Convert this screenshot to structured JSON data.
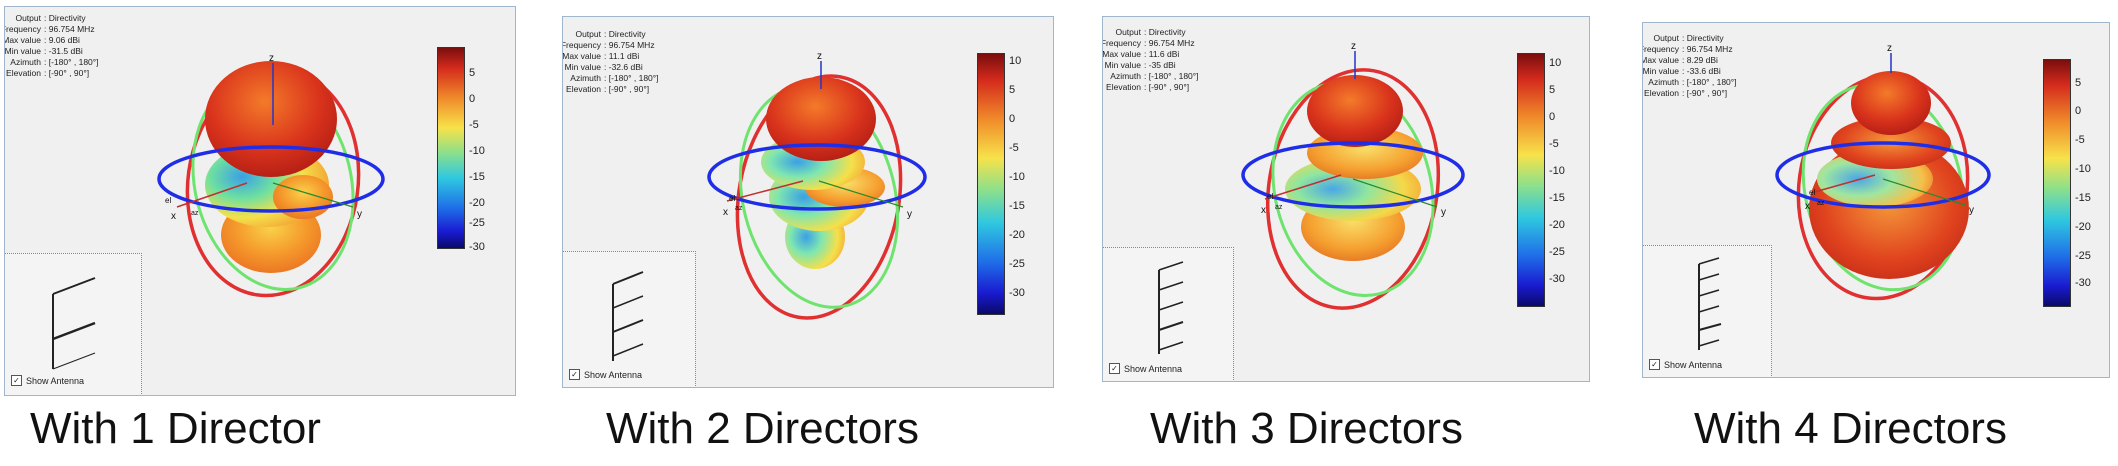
{
  "panels": [
    {
      "info": [
        {
          "key": "Output",
          "value": "Directivity"
        },
        {
          "key": "Frequency",
          "value": "96.754 MHz"
        },
        {
          "key": "Max value",
          "value": "9.06 dBi"
        },
        {
          "key": "Min value",
          "value": "-31.5 dBi"
        },
        {
          "key": "Azimuth",
          "value": "[-180° , 180°]"
        },
        {
          "key": "Elevation",
          "value": "[-90° , 90°]"
        }
      ],
      "colorbar_ticks": [
        "5",
        "0",
        "-5",
        "-10",
        "-15",
        "-20",
        "-25",
        "-30"
      ],
      "axis_labels": {
        "z": "z",
        "x": "x",
        "y": "y",
        "az": "az",
        "el": "el"
      },
      "show_antenna": "Show Antenna",
      "director_count": 1,
      "caption": "With 1 Director"
    },
    {
      "info": [
        {
          "key": "Output",
          "value": "Directivity"
        },
        {
          "key": "Frequency",
          "value": "96.754 MHz"
        },
        {
          "key": "Max value",
          "value": "11.1 dBi"
        },
        {
          "key": "Min value",
          "value": "-32.6 dBi"
        },
        {
          "key": "Azimuth",
          "value": "[-180° , 180°]"
        },
        {
          "key": "Elevation",
          "value": "[-90° , 90°]"
        }
      ],
      "colorbar_ticks": [
        "10",
        "5",
        "0",
        "-5",
        "-10",
        "-15",
        "-20",
        "-25",
        "-30"
      ],
      "axis_labels": {
        "z": "z",
        "x": "x",
        "y": "y",
        "az": "az",
        "el": "el"
      },
      "show_antenna": "Show Antenna",
      "director_count": 2,
      "caption": "With 2 Directors"
    },
    {
      "info": [
        {
          "key": "Output",
          "value": "Directivity"
        },
        {
          "key": "Frequency",
          "value": "96.754 MHz"
        },
        {
          "key": "Max value",
          "value": "11.6 dBi"
        },
        {
          "key": "Min value",
          "value": "-35 dBi"
        },
        {
          "key": "Azimuth",
          "value": "[-180° , 180°]"
        },
        {
          "key": "Elevation",
          "value": "[-90° , 90°]"
        }
      ],
      "colorbar_ticks": [
        "10",
        "5",
        "0",
        "-5",
        "-10",
        "-15",
        "-20",
        "-25",
        "-30"
      ],
      "axis_labels": {
        "z": "z",
        "x": "x",
        "y": "y",
        "az": "az",
        "el": "el"
      },
      "show_antenna": "Show Antenna",
      "director_count": 3,
      "caption": "With 3 Directors"
    },
    {
      "info": [
        {
          "key": "Output",
          "value": "Directivity"
        },
        {
          "key": "Frequency",
          "value": "96.754 MHz"
        },
        {
          "key": "Max value",
          "value": "8.29 dBi"
        },
        {
          "key": "Min value",
          "value": "-33.6 dBi"
        },
        {
          "key": "Azimuth",
          "value": "[-180° , 180°]"
        },
        {
          "key": "Elevation",
          "value": "[-90° , 90°]"
        }
      ],
      "colorbar_ticks": [
        "5",
        "0",
        "-5",
        "-10",
        "-15",
        "-20",
        "-25",
        "-30"
      ],
      "axis_labels": {
        "z": "z",
        "x": "x",
        "y": "y",
        "az": "az",
        "el": "el"
      },
      "show_antenna": "Show Antenna",
      "director_count": 4,
      "caption": "With 4 Directors"
    }
  ],
  "colors": {
    "panel_bg": "#f0f0f0",
    "azimuth_ring": "#1f2ee6",
    "elevation_ring_red": "#e03030",
    "elevation_ring_green": "#6ee36e",
    "lobe_hot": "#e64a1e",
    "lobe_cold": "#4aa6e8"
  }
}
